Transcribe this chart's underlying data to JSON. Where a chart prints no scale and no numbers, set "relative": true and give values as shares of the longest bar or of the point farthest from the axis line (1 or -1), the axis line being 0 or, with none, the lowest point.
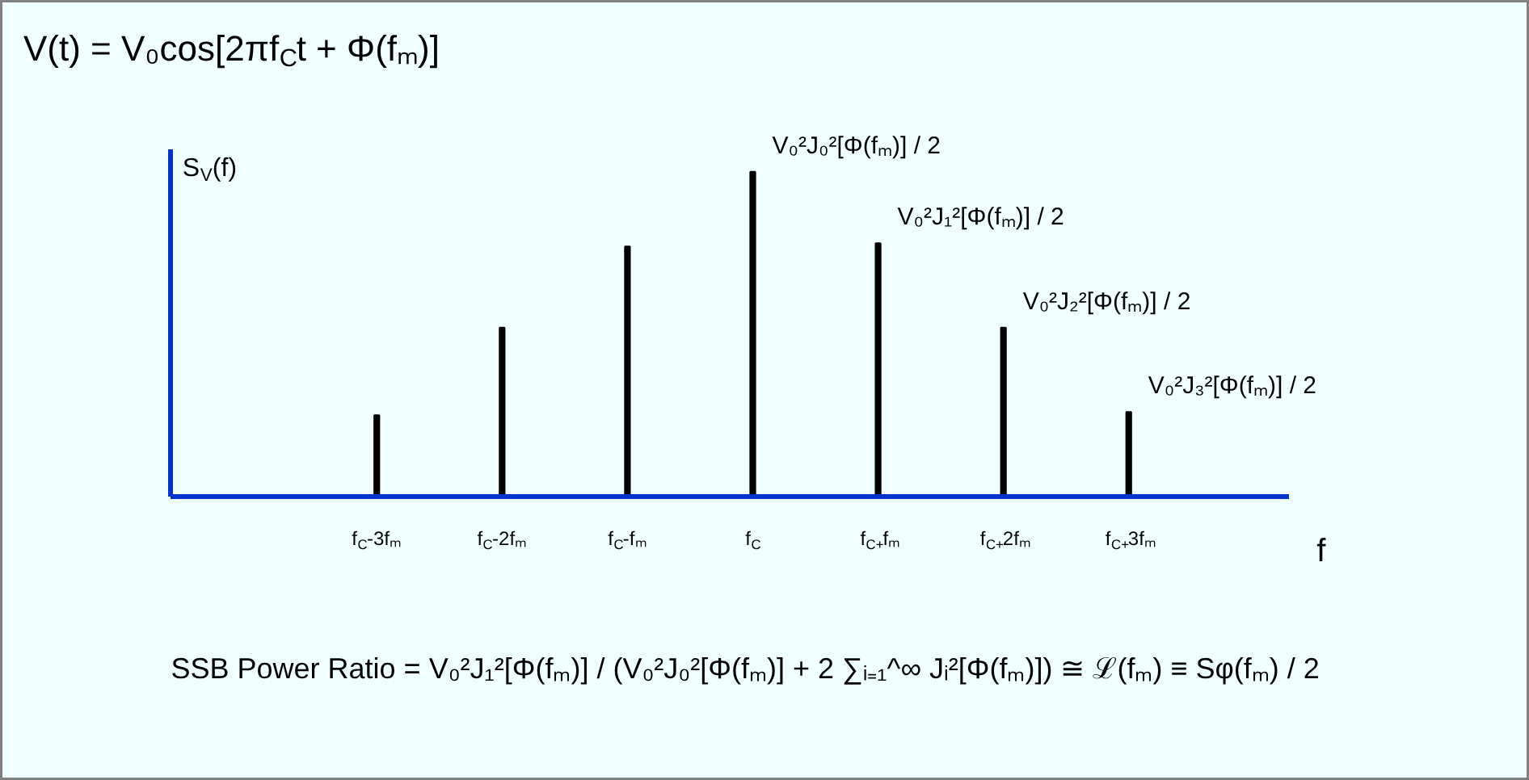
{
  "chart_data": {
    "type": "bar",
    "relative": true,
    "title": "V(t) = V₀cos[2πf$_{C}$t + Φ(fₘ)]",
    "xlabel": "f",
    "categories": [
      "f$_{C}$-3fₘ",
      "f$_{C}$-2fₘ",
      "f$_{C}$-fₘ",
      "f$_{C}$",
      "f$_{C+}$fₘ",
      "f$_{C+}$2fₘ",
      "f$_{C+}$3fₘ"
    ],
    "values": [
      0.25,
      0.52,
      0.77,
      1,
      0.78,
      0.52,
      0.26
    ],
    "color": "#000000",
    "grid": false,
    "annotations": [
      "S$_{V}$(f)",
      {
        "text": "V₀²J₀²[Φ(fₘ)] / 2",
        "x": "f$_{C}$",
        "y": 1
      },
      {
        "text": "V₀²J₁²[Φ(fₘ)] / 2",
        "x": "f$_{C+}$fₘ",
        "y": 0.78
      },
      {
        "text": "V₀²J₂²[Φ(fₘ)] / 2",
        "x": "f$_{C+}$2fₘ",
        "y": 0.52
      },
      {
        "text": "V₀²J₃²[Φ(fₘ)] / 2",
        "x": "f$_{C+}$3fₘ",
        "y": 0.26
      },
      "SSB Power Ratio = V₀²J₁²[Φ(fₘ)] / (V₀²J₀²[Φ(fₘ)] + 2 ∑ᵢ₌₁^∞ Jᵢ²[Φ(fₘ)]) ≅ ℒ(fₘ) ≡ Sφ(fₘ) / 2"
    ]
  }
}
